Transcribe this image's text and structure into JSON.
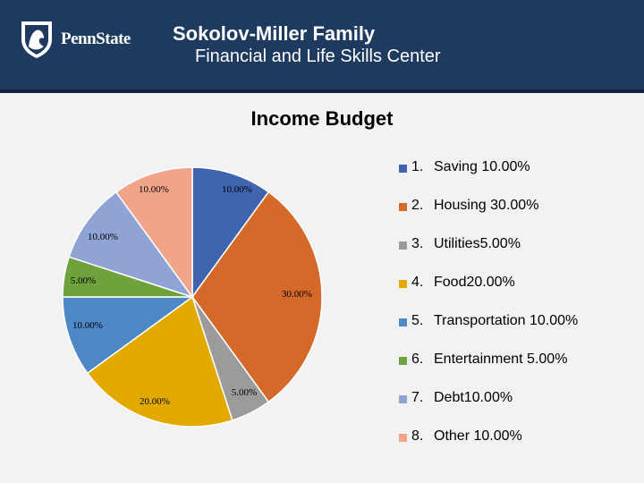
{
  "header": {
    "logo_text": "PennState",
    "title": "Sokolov-Miller Family",
    "subtitle": "Financial and Life Skills Center",
    "background_color": "#1e3a5f"
  },
  "chart_data": {
    "type": "pie",
    "title": "Income Budget",
    "categories": [
      "Saving",
      "Housing",
      "Utilities",
      "Food",
      "Transportation",
      "Entertainment",
      "Debt",
      "Other"
    ],
    "values": [
      10,
      30,
      5,
      20,
      10,
      5,
      10,
      10
    ],
    "data_labels": [
      "10.00%",
      "30.00%",
      "5.00%",
      "20.00%",
      "10.00%",
      "5.00%",
      "10.00%",
      "10.00%"
    ],
    "colors": [
      "#4064ad",
      "#d4692a",
      "#9b9b9b",
      "#e2aa00",
      "#4f88c6",
      "#6fa23c",
      "#8fa3d4",
      "#f0a48a"
    ],
    "legend_position": "right",
    "legend": [
      {
        "num": "1.",
        "label": "Saving 10.00%"
      },
      {
        "num": "2.",
        "label": "Housing 30.00%"
      },
      {
        "num": "3.",
        "label": "Utilities5.00%"
      },
      {
        "num": "4.",
        "label": "Food20.00%"
      },
      {
        "num": "5.",
        "label": "Transportation 10.00%"
      },
      {
        "num": "6.",
        "label": "Entertainment 5.00%"
      },
      {
        "num": "7.",
        "label": "Debt10.00%"
      },
      {
        "num": "8.",
        "label": "Other 10.00%"
      }
    ]
  }
}
